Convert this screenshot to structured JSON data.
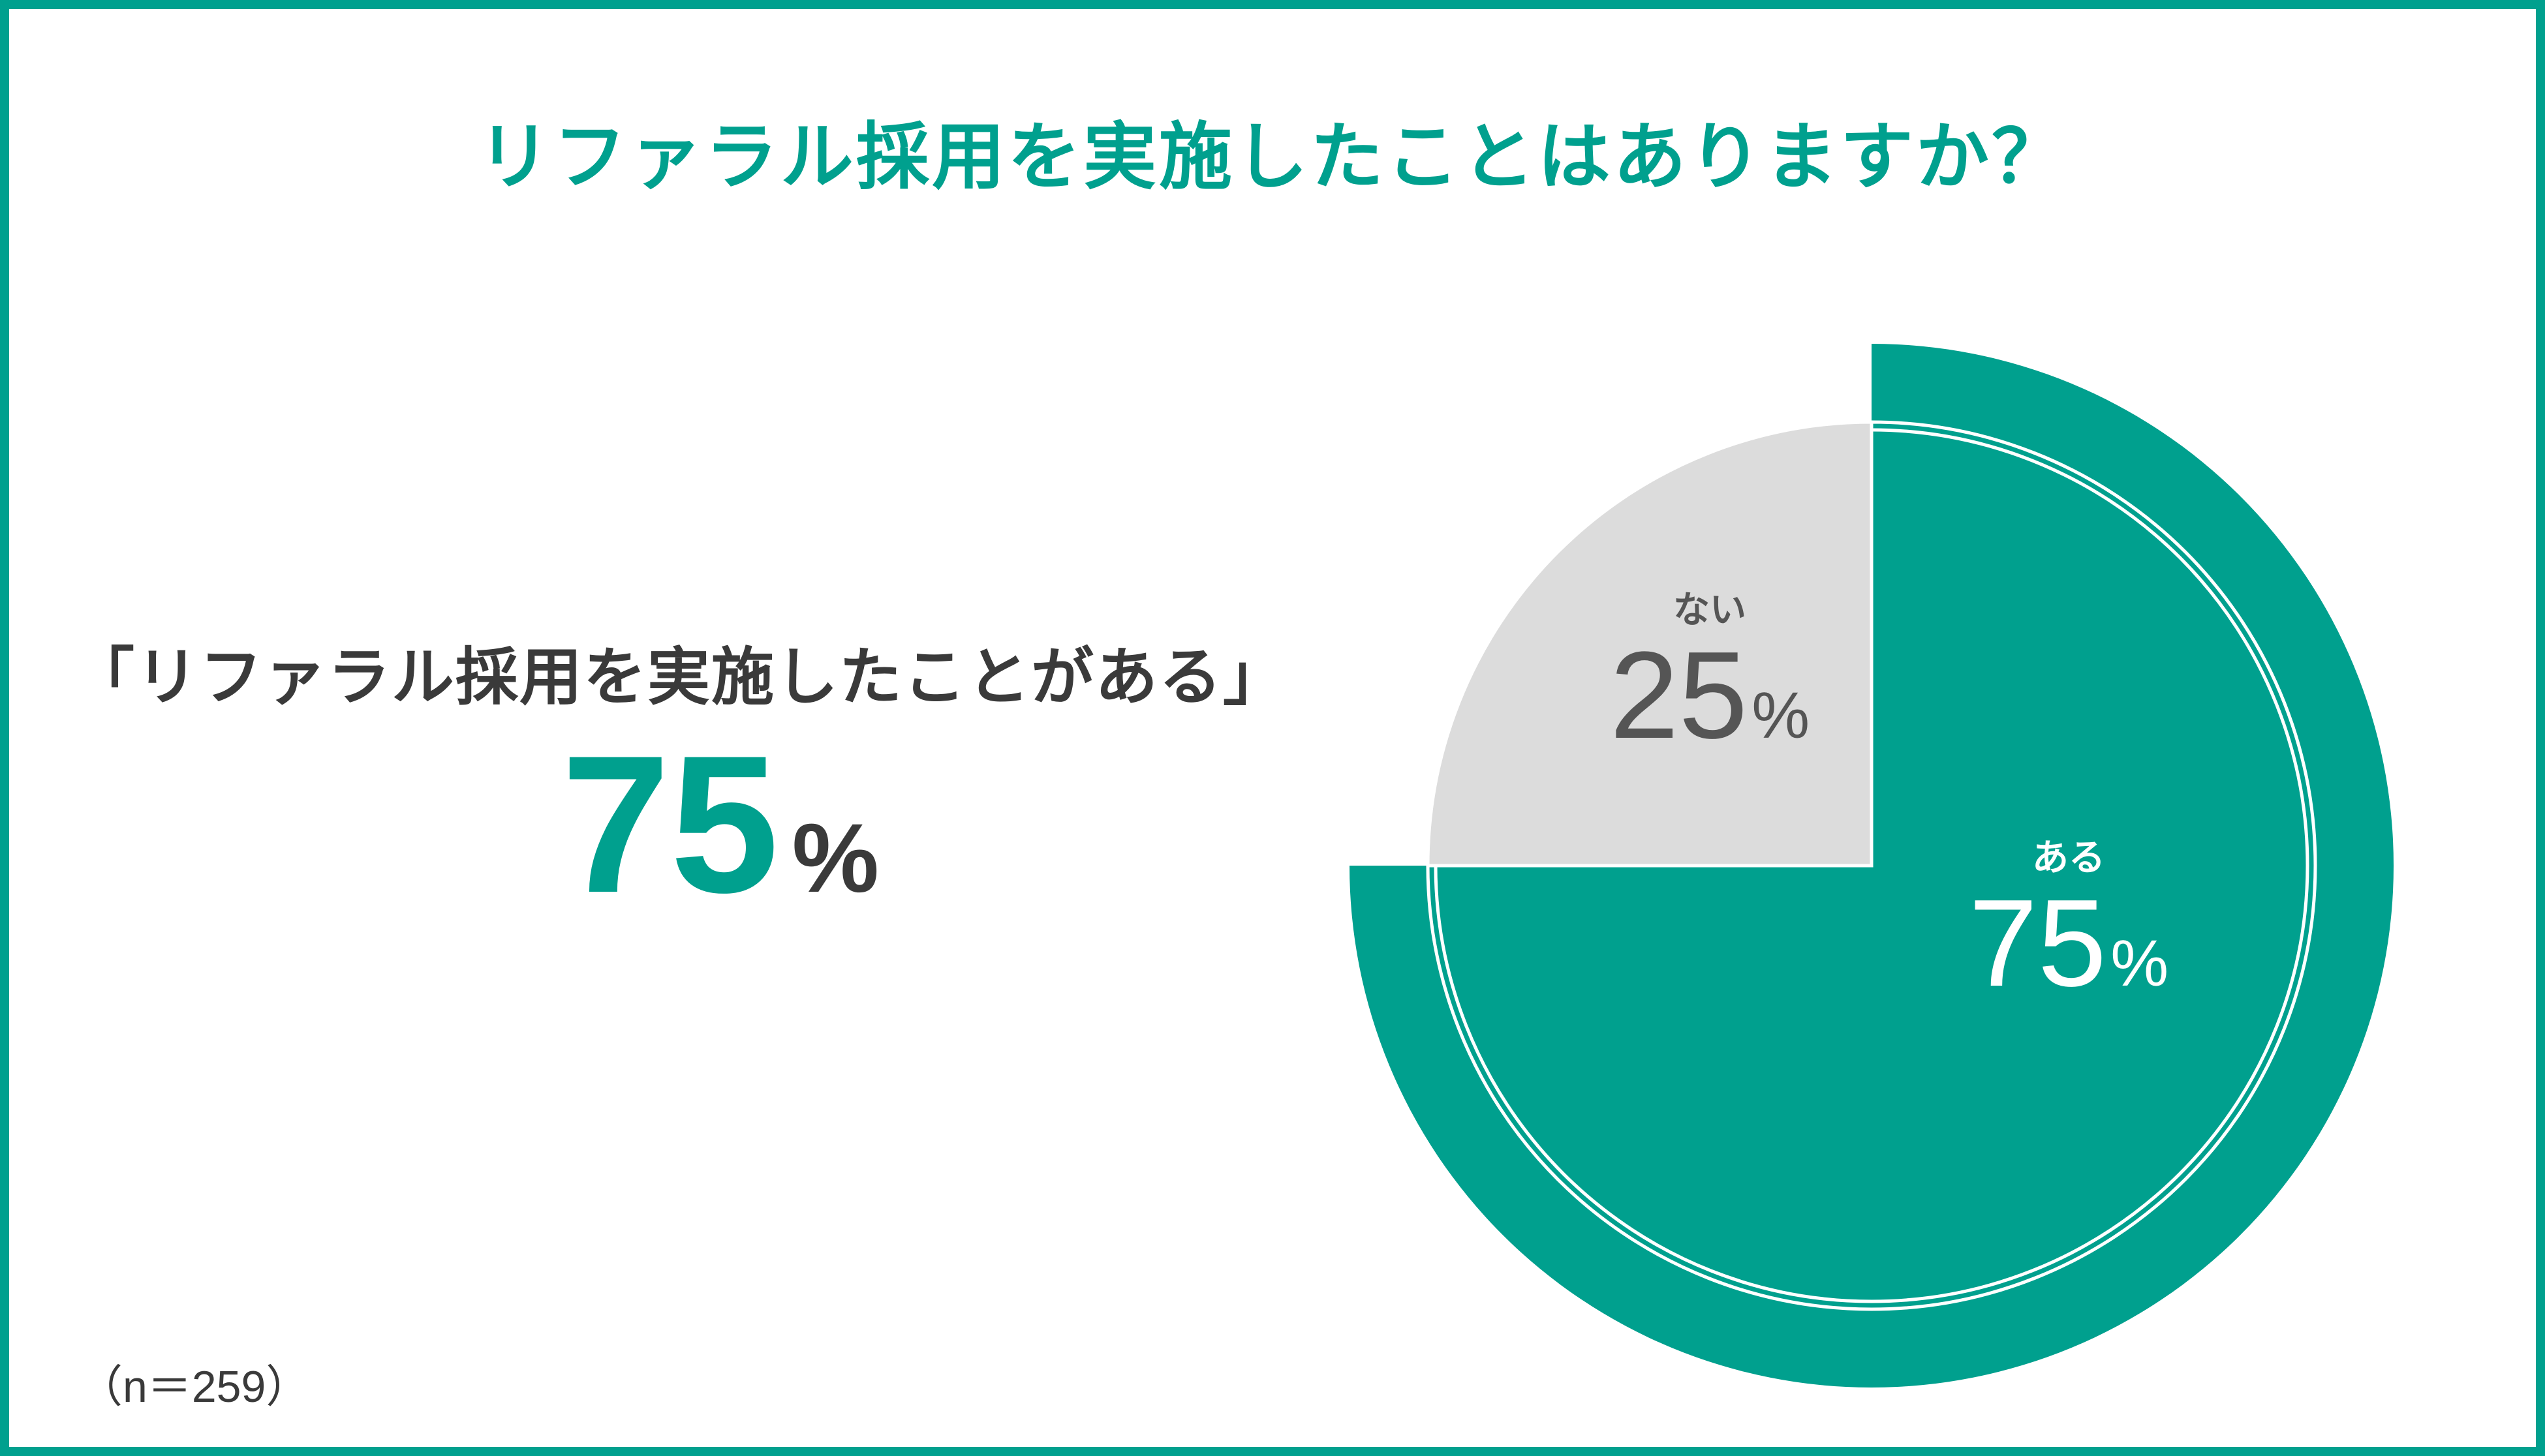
{
  "title": "リファラル採用を実施したことはありますか？",
  "headline": "「リファラル採用を実施したことがある」",
  "big_value": "75",
  "big_unit": "%",
  "sample_note": "（n＝259）",
  "colors": {
    "accent": "#00a08e",
    "gray_slice": "#dcdcdc",
    "text_dark": "#3a3a3a"
  },
  "chart_data": {
    "type": "pie",
    "categories": [
      "ある",
      "ない"
    ],
    "values": [
      75,
      25
    ],
    "unit": "%",
    "slices": [
      {
        "label": "ある",
        "value": 75,
        "display": "75",
        "unit": "%",
        "color": "#00a08e",
        "highlighted": true
      },
      {
        "label": "ない",
        "value": 25,
        "display": "25",
        "unit": "%",
        "color": "#dcdcdc",
        "highlighted": false
      }
    ],
    "start": "12 o'clock",
    "direction": "clockwise",
    "title": "リファラル採用を実施したことはありますか？",
    "n": 259
  }
}
